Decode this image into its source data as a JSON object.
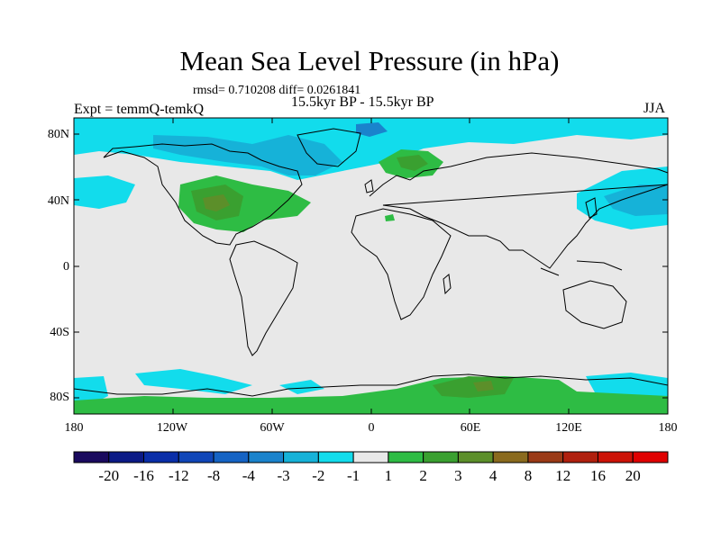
{
  "title": "Mean Sea Level Pressure (in hPa)",
  "stats_line": "rmsd= 0.710208 diff= 0.0261841",
  "period": "15.5kyr BP - 15.5kyr BP",
  "experiment": "Expt = temmQ-temkQ",
  "season": "JJA",
  "lat_ticks": [
    "80N",
    "40N",
    "0",
    "40S",
    "80S"
  ],
  "lon_ticks": [
    "180",
    "120W",
    "60W",
    "0",
    "60E",
    "120E",
    "180"
  ],
  "colorbar": {
    "labels": [
      "-20",
      "-16",
      "-12",
      "-8",
      "-4",
      "-3",
      "-2",
      "-1",
      "1",
      "2",
      "3",
      "4",
      "8",
      "12",
      "16",
      "20"
    ],
    "colors": [
      "#1a0a5e",
      "#0b1a86",
      "#0a2ea8",
      "#1046b8",
      "#1563c4",
      "#1a83cc",
      "#16b2d8",
      "#12dcec",
      "#e8e8e8",
      "#2ebc44",
      "#3aa030",
      "#5c8f2a",
      "#8a6a1e",
      "#9a3a16",
      "#b0200e",
      "#cc1206",
      "#e00000"
    ]
  }
}
